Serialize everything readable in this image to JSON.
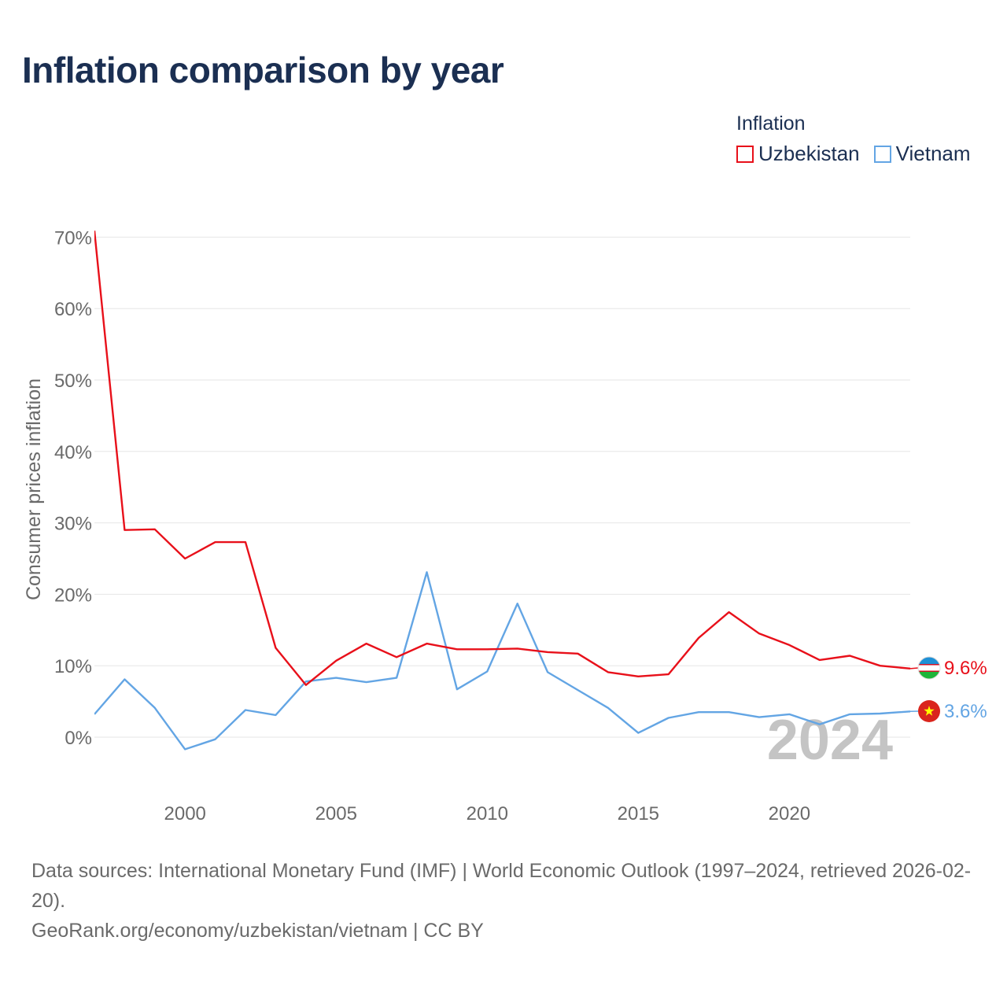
{
  "page": {
    "title": "Inflation comparison by year",
    "footer_sources": "Data sources: International Monetary Fund (IMF) | World Economic Outlook (1997–2024, retrieved 2026-02-20).",
    "footer_link": "GeoRank.org/economy/uzbekistan/vietnam | CC BY"
  },
  "legend": {
    "title": "Inflation",
    "items": [
      {
        "label": "Uzbekistan",
        "color": "#e8101a"
      },
      {
        "label": "Vietnam",
        "color": "#63a5e4"
      }
    ]
  },
  "chart_data": {
    "type": "line",
    "title": "Inflation comparison by year",
    "ylabel": "Consumer prices inflation",
    "xlabel": "",
    "xlim": [
      1997,
      2024
    ],
    "ylim": [
      -7,
      70
    ],
    "y_ticks": [
      0,
      10,
      20,
      30,
      40,
      50,
      60,
      70
    ],
    "y_tick_labels": [
      "0%",
      "10%",
      "20%",
      "30%",
      "40%",
      "50%",
      "60%",
      "70%"
    ],
    "x_ticks": [
      2000,
      2005,
      2010,
      2015,
      2020
    ],
    "x_tick_labels": [
      "2000",
      "2005",
      "2010",
      "2015",
      "2020"
    ],
    "year_watermark": "2024",
    "x": [
      1997,
      1998,
      1999,
      2000,
      2001,
      2002,
      2003,
      2004,
      2005,
      2006,
      2007,
      2008,
      2009,
      2010,
      2011,
      2012,
      2013,
      2014,
      2015,
      2016,
      2017,
      2018,
      2019,
      2020,
      2021,
      2022,
      2023,
      2024
    ],
    "series": [
      {
        "name": "Uzbekistan",
        "color": "#e8101a",
        "flag": "uzbekistan-flag",
        "end_label": "9.6%",
        "values": [
          70.9,
          29.0,
          29.1,
          25.0,
          27.3,
          27.3,
          12.5,
          7.3,
          10.7,
          13.1,
          11.2,
          13.1,
          12.3,
          12.3,
          12.4,
          11.9,
          11.7,
          9.1,
          8.5,
          8.8,
          13.9,
          17.5,
          14.5,
          12.9,
          10.8,
          11.4,
          10.0,
          9.6
        ]
      },
      {
        "name": "Vietnam",
        "color": "#63a5e4",
        "flag": "vietnam-flag",
        "end_label": "3.6%",
        "values": [
          3.2,
          8.1,
          4.1,
          -1.7,
          -0.3,
          3.8,
          3.1,
          7.8,
          8.3,
          7.7,
          8.3,
          23.1,
          6.7,
          9.2,
          18.7,
          9.1,
          6.6,
          4.1,
          0.6,
          2.7,
          3.5,
          3.5,
          2.8,
          3.2,
          1.8,
          3.2,
          3.3,
          3.6
        ]
      }
    ]
  }
}
